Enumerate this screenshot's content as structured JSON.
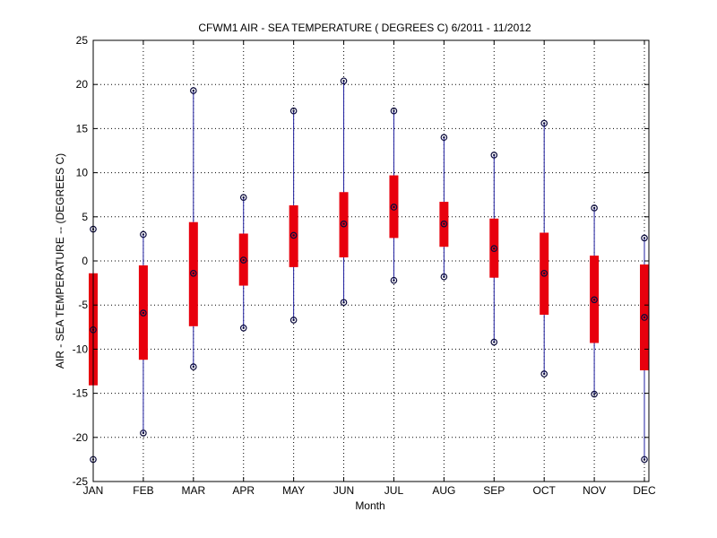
{
  "chart_data": {
    "type": "box",
    "title": "CFWM1  AIR - SEA TEMPERATURE ( DEGREES C) 6/2011 - 11/2012",
    "xlabel": "Month",
    "ylabel": "AIR - SEA TEMPERATURE -- (DEGREES C)",
    "ylim": [
      -25,
      25
    ],
    "yticks": [
      -25,
      -20,
      -15,
      -10,
      -5,
      0,
      5,
      10,
      15,
      20,
      25
    ],
    "grid": true,
    "categories": [
      "JAN",
      "FEB",
      "MAR",
      "APR",
      "MAY",
      "JUN",
      "JUL",
      "AUG",
      "SEP",
      "OCT",
      "NOV",
      "DEC"
    ],
    "series": [
      {
        "min": [
          -22.5,
          -19.5,
          -12.0,
          -7.6,
          -6.7,
          -4.7,
          -2.2,
          -1.8,
          -9.2,
          -12.8,
          -15.1,
          -22.5
        ],
        "q1": [
          -14.1,
          -11.2,
          -7.4,
          -2.8,
          -0.7,
          0.4,
          2.6,
          1.6,
          -1.9,
          -6.1,
          -9.3,
          -12.4
        ],
        "median": [
          -7.8,
          -5.9,
          -1.4,
          0.1,
          2.9,
          4.2,
          6.1,
          4.2,
          1.4,
          -1.4,
          -4.4,
          -6.4
        ],
        "q3": [
          -1.4,
          -0.5,
          4.4,
          3.1,
          6.3,
          7.8,
          9.7,
          6.7,
          4.8,
          3.2,
          0.6,
          -0.4
        ],
        "max": [
          3.6,
          3.0,
          19.3,
          7.2,
          17.0,
          20.4,
          17.0,
          14.0,
          12.0,
          15.6,
          6.0,
          2.6
        ]
      }
    ],
    "colors": {
      "box": "#e8000d",
      "whisker": "#1f1fa0",
      "marker": "#0a0a3c",
      "grid": "#000000"
    }
  }
}
